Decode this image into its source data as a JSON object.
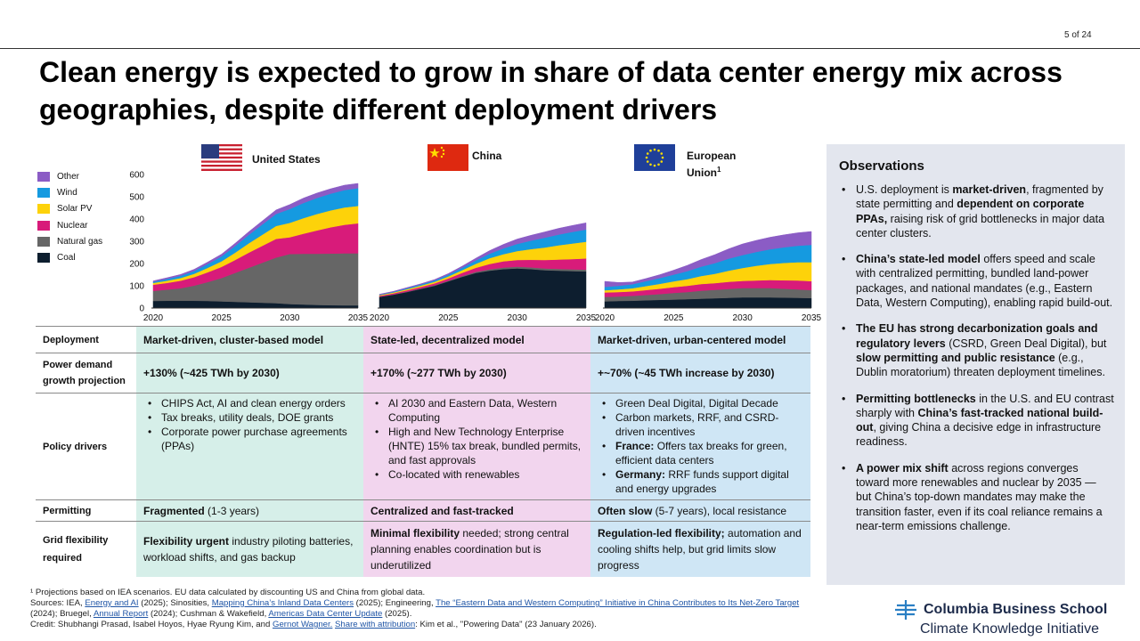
{
  "page_number": "5 of 24",
  "title": "Clean energy is expected to grow in share of data center energy mix across geographies, despite different deployment drivers",
  "regions": [
    {
      "key": "us",
      "label": "United States",
      "sup": ""
    },
    {
      "key": "cn",
      "label": "China",
      "sup": ""
    },
    {
      "key": "eu",
      "label": "European Union",
      "sup": "1"
    }
  ],
  "legend": [
    {
      "label": "Other",
      "color": "#8b5cc5"
    },
    {
      "label": "Wind",
      "color": "#159ae0"
    },
    {
      "label": "Solar PV",
      "color": "#fdd20a"
    },
    {
      "label": "Nuclear",
      "color": "#d81b7a"
    },
    {
      "label": "Natural gas",
      "color": "#666666"
    },
    {
      "label": "Coal",
      "color": "#0d1e2f"
    }
  ],
  "chart_data": [
    {
      "type": "area",
      "stacked": true,
      "region": "United States",
      "x": [
        2020,
        2021,
        2022,
        2023,
        2024,
        2025,
        2026,
        2027,
        2028,
        2029,
        2030,
        2031,
        2032,
        2033,
        2034,
        2035
      ],
      "x_ticks": [
        2020,
        2025,
        2030,
        2035
      ],
      "y_ticks": [
        0,
        100,
        200,
        300,
        400,
        500,
        600
      ],
      "ylim": [
        0,
        600
      ],
      "series": [
        {
          "name": "Coal",
          "values": [
            32,
            33,
            33,
            33,
            32,
            30,
            28,
            26,
            24,
            22,
            18,
            16,
            14,
            13,
            12,
            12
          ]
        },
        {
          "name": "Natural gas",
          "values": [
            45,
            50,
            56,
            68,
            85,
            105,
            130,
            155,
            180,
            205,
            225,
            228,
            230,
            232,
            234,
            234
          ]
        },
        {
          "name": "Nuclear",
          "values": [
            28,
            30,
            34,
            38,
            44,
            50,
            58,
            68,
            76,
            84,
            75,
            90,
            105,
            118,
            128,
            135
          ]
        },
        {
          "name": "Solar PV",
          "values": [
            8,
            10,
            12,
            15,
            20,
            25,
            33,
            42,
            50,
            58,
            65,
            70,
            74,
            76,
            78,
            78
          ]
        },
        {
          "name": "Wind",
          "values": [
            5,
            8,
            10,
            13,
            17,
            22,
            30,
            38,
            46,
            54,
            62,
            68,
            72,
            75,
            78,
            80
          ]
        },
        {
          "name": "Other",
          "values": [
            4,
            5,
            6,
            7,
            9,
            10,
            12,
            14,
            16,
            18,
            20,
            22,
            22,
            22,
            22,
            21
          ]
        }
      ]
    },
    {
      "type": "area",
      "stacked": true,
      "region": "China",
      "x": [
        2020,
        2021,
        2022,
        2023,
        2024,
        2025,
        2026,
        2027,
        2028,
        2029,
        2030,
        2031,
        2032,
        2033,
        2034,
        2035
      ],
      "x_ticks": [
        2020,
        2025,
        2030,
        2035
      ],
      "ylim": [
        0,
        600
      ],
      "series": [
        {
          "name": "Coal",
          "values": [
            50,
            60,
            72,
            86,
            100,
            120,
            140,
            158,
            168,
            175,
            178,
            175,
            170,
            168,
            166,
            165
          ]
        },
        {
          "name": "Natural gas",
          "values": [
            1,
            1,
            2,
            2,
            3,
            3,
            4,
            5,
            6,
            7,
            8,
            8,
            8,
            8,
            8,
            8
          ]
        },
        {
          "name": "Nuclear",
          "values": [
            4,
            5,
            6,
            7,
            8,
            10,
            14,
            18,
            24,
            28,
            30,
            34,
            38,
            42,
            46,
            50
          ]
        },
        {
          "name": "Solar PV",
          "values": [
            3,
            4,
            5,
            6,
            7,
            9,
            12,
            18,
            26,
            32,
            40,
            48,
            56,
            64,
            70,
            75
          ]
        },
        {
          "name": "Wind",
          "values": [
            2,
            3,
            4,
            5,
            6,
            8,
            11,
            15,
            20,
            26,
            32,
            38,
            44,
            48,
            52,
            55
          ]
        },
        {
          "name": "Other",
          "values": [
            2,
            2,
            3,
            3,
            4,
            5,
            7,
            10,
            14,
            18,
            22,
            24,
            26,
            28,
            29,
            30
          ]
        }
      ]
    },
    {
      "type": "area",
      "stacked": true,
      "region": "European Union",
      "x": [
        2020,
        2021,
        2022,
        2023,
        2024,
        2025,
        2026,
        2027,
        2028,
        2029,
        2030,
        2031,
        2032,
        2033,
        2034,
        2035
      ],
      "x_ticks": [
        2020,
        2025,
        2030,
        2035
      ],
      "ylim": [
        0,
        600
      ],
      "series": [
        {
          "name": "Coal",
          "values": [
            30,
            32,
            33,
            35,
            37,
            38,
            40,
            42,
            44,
            46,
            48,
            48,
            48,
            47,
            46,
            45
          ]
        },
        {
          "name": "Natural gas",
          "values": [
            20,
            20,
            22,
            24,
            26,
            30,
            32,
            36,
            38,
            40,
            42,
            42,
            42,
            40,
            38,
            36
          ]
        },
        {
          "name": "Nuclear",
          "values": [
            20,
            20,
            20,
            22,
            24,
            26,
            28,
            30,
            30,
            32,
            32,
            34,
            36,
            38,
            40,
            40
          ]
        },
        {
          "name": "Solar PV",
          "values": [
            10,
            12,
            14,
            18,
            22,
            26,
            30,
            36,
            42,
            50,
            58,
            66,
            72,
            78,
            82,
            85
          ]
        },
        {
          "name": "Wind",
          "values": [
            15,
            16,
            18,
            22,
            26,
            30,
            36,
            42,
            48,
            54,
            58,
            62,
            66,
            70,
            74,
            78
          ]
        },
        {
          "name": "Other",
          "values": [
            25,
            15,
            10,
            12,
            15,
            20,
            26,
            32,
            38,
            44,
            50,
            52,
            54,
            56,
            58,
            60
          ]
        }
      ]
    }
  ],
  "table": {
    "rows": [
      {
        "key": "deployment",
        "label": "Deployment",
        "us": "Market-driven, cluster-based model",
        "cn": "State-led, decentralized model",
        "eu": "Market-driven, urban-centered model"
      },
      {
        "key": "growth",
        "label": "Power demand growth projection",
        "us": "+130% (~425 TWh by 2030)",
        "cn": "+170% (~277 TWh by 2030)",
        "eu": "+~70% (~45 TWh increase by 2030)"
      },
      {
        "key": "policy",
        "label": "Policy drivers",
        "us": [
          "CHIPS Act, AI and clean energy orders",
          "Tax breaks, utility deals, DOE grants",
          "Corporate  power purchase agreements (PPAs)"
        ],
        "cn": [
          "AI 2030 and Eastern Data, Western Computing",
          "High and New Technology Enterprise (HNTE)  15% tax break, bundled permits, and fast approvals",
          "Co-located with renewables"
        ],
        "eu": [
          {
            "bold": "",
            "text": "Green Deal Digital, Digital Decade"
          },
          {
            "bold": "",
            "text": "Carbon markets, RRF, and CSRD-driven  incentives"
          },
          {
            "bold": "France:",
            "text": " Offers tax breaks for green, efficient data centers"
          },
          {
            "bold": "Germany:",
            "text": " RRF funds support digital and energy upgrades"
          }
        ]
      },
      {
        "key": "permitting",
        "label": "Permitting",
        "us": {
          "bold": "Fragmented",
          "text": " (1-3 years)"
        },
        "cn": {
          "bold": "Centralized and fast-tracked",
          "text": ""
        },
        "eu": {
          "bold": "Often slow",
          "text": " (5-7 years), local resistance"
        }
      },
      {
        "key": "grid",
        "label": "Grid flexibility required",
        "us": {
          "bold": "Flexibility urgent",
          "text": " industry piloting batteries, workload shifts, and gas backup"
        },
        "cn": {
          "bold": "Minimal flexibility",
          "text": " needed; strong central planning enables coordination but is underutilized"
        },
        "eu": {
          "bold": "Regulation-led flexibility;",
          "text": " automation and cooling shifts help, but grid limits slow progress"
        }
      }
    ]
  },
  "observations": {
    "title": "Observations",
    "items": [
      [
        {
          "t": "U.S. deployment is "
        },
        {
          "b": "market-driven"
        },
        {
          "t": ", fragmented by state permitting and "
        },
        {
          "b": "dependent on corporate PPAs,"
        },
        {
          "t": " raising risk of grid bottlenecks in major data center clusters."
        }
      ],
      [
        {
          "b": "China’s state-led model"
        },
        {
          "t": " offers speed and scale with centralized permitting, bundled land-power packages, and national mandates (e.g., Eastern Data, Western Computing), enabling rapid build-out."
        }
      ],
      [
        {
          "b": "The EU has strong decarbonization goals and regulatory levers"
        },
        {
          "t": " (CSRD, Green Deal Digital), but "
        },
        {
          "b": "slow permitting and public resistance"
        },
        {
          "t": " (e.g., Dublin moratorium) threaten deployment timelines."
        }
      ],
      [
        {
          "b": "Permitting bottlenecks"
        },
        {
          "t": " in the U.S. and EU contrast sharply with "
        },
        {
          "b": "China’s fast-tracked national build-out"
        },
        {
          "t": ", giving China a decisive edge in infrastructure readiness."
        }
      ],
      [
        {
          "b": "A power mix shift"
        },
        {
          "t": " across regions converges toward more renewables and nuclear by 2035 — but China’s top-down mandates may make the transition faster, even if its coal reliance remains a near-term emissions challenge."
        }
      ]
    ]
  },
  "footer": {
    "lines": [
      [
        {
          "t": "¹ Projections based on IEA  scenarios. EU data calculated by discounting US and China  from global data."
        }
      ],
      [
        {
          "t": "Sources: IEA, "
        },
        {
          "l": "Energy and AI"
        },
        {
          "t": " (2025); Sinosities, "
        },
        {
          "l": "Mapping China’s Inland Data Centers"
        },
        {
          "t": " (2025); Engineering, "
        },
        {
          "l": "The “Eastern Data and Western Computing” Initiative in China Contributes to Its Net-Zero Target"
        },
        {
          "t": " (2024); Bruegel, "
        },
        {
          "l": "Annual Report"
        },
        {
          "t": " (2024); Cushman & Wakefield, "
        },
        {
          "l": "Americas Data Center Update"
        },
        {
          "t": " (2025)."
        }
      ],
      [
        {
          "t": "Credit: Shubhangi Prasad, Isabel Hoyos, Hyae Ryung Kim, and "
        },
        {
          "l": "Gernot Wagner."
        },
        {
          "t": " "
        },
        {
          "l": "Share with attribution"
        },
        {
          "t": ": Kim et al., \"Powering Data\" (23 January 2026)."
        }
      ]
    ]
  },
  "logo": {
    "name": "Columbia Business School",
    "sub": "Climate Knowledge Initiative"
  }
}
